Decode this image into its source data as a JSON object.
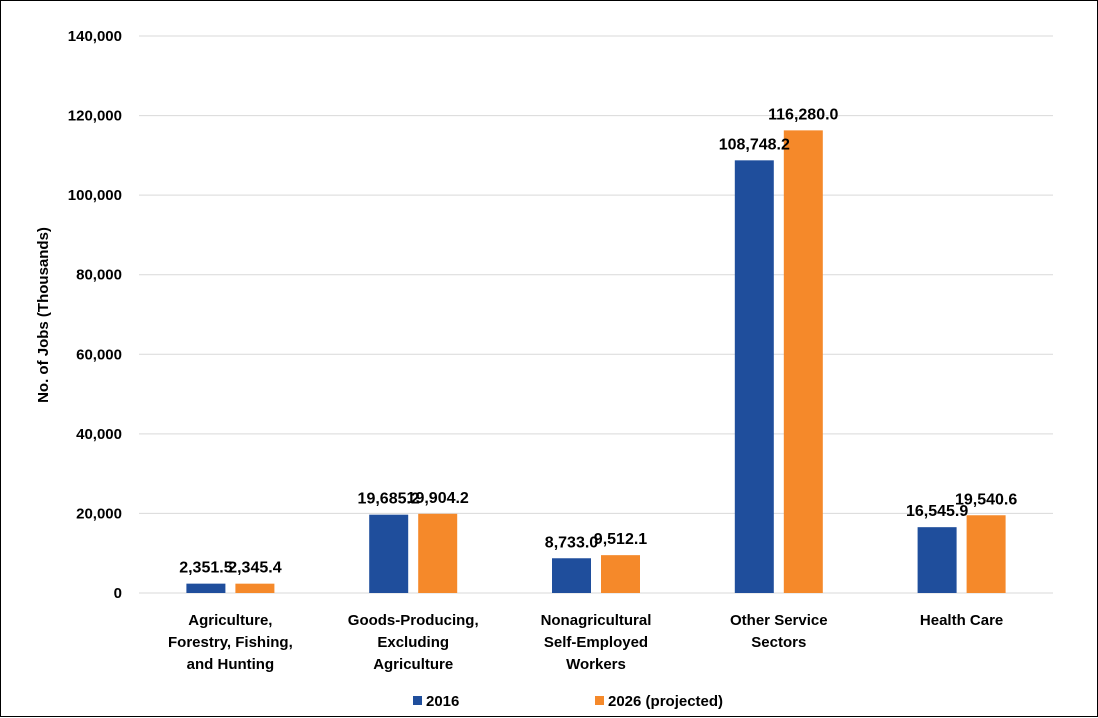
{
  "chart_data": {
    "type": "bar",
    "categories": [
      [
        "Agriculture,",
        "Forestry, Fishing,",
        "and Hunting"
      ],
      [
        "Goods-Producing,",
        "Excluding",
        "Agriculture"
      ],
      [
        "Nonagricultural",
        "Self-Employed",
        "Workers"
      ],
      [
        "Other Service",
        "Sectors"
      ],
      [
        "Health Care"
      ]
    ],
    "series": [
      {
        "name": "2016",
        "color": "#1f4e9c",
        "values": [
          2351.5,
          19685.2,
          8733.0,
          108748.2,
          16545.9
        ],
        "labels": [
          "2,351.5",
          "19,685.2",
          "8,733.0",
          "108,748.2",
          "16,545.9"
        ]
      },
      {
        "name": "2026 (projected)",
        "color": "#f5892a",
        "values": [
          2345.4,
          19904.2,
          9512.1,
          116280.0,
          19540.6
        ],
        "labels": [
          "2,345.4",
          "19,904.2",
          "9,512.1",
          "116,280.0",
          "19,540.6"
        ]
      }
    ],
    "ylabel": "No. of Jobs (Thousands)",
    "ylim": [
      0,
      140000
    ],
    "yticks": [
      0,
      20000,
      40000,
      60000,
      80000,
      100000,
      120000,
      140000
    ],
    "ytick_labels": [
      "0",
      "20,000",
      "40,000",
      "60,000",
      "80,000",
      "100,000",
      "120,000",
      "140,000"
    ],
    "grid": true,
    "legend": "bottom"
  }
}
